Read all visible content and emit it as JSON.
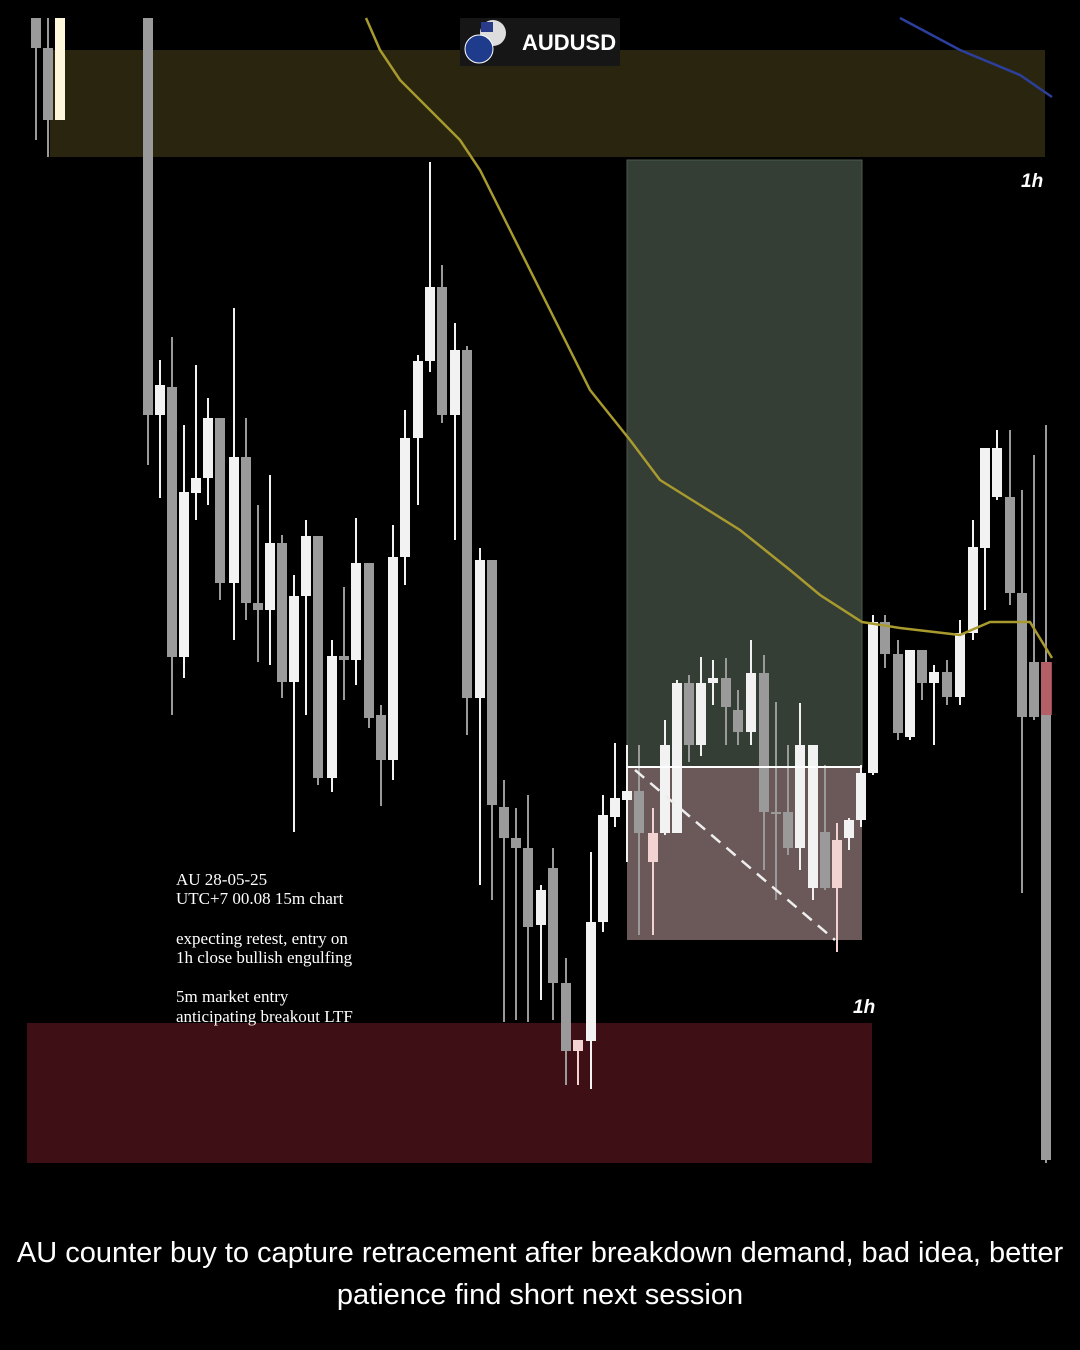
{
  "header": {
    "symbol": "AUDUSD"
  },
  "labels": {
    "zone_top": "1h",
    "zone_bottom": "1h"
  },
  "notes": [
    "AU 28-05-25",
    "UTC+7 00.08 15m chart",
    "expecting retest, entry on",
    "1h close bullish engulfing",
    "5m market entry",
    "anticipating breakout LTF"
  ],
  "caption": "AU counter buy to capture retracement after breakdown demand, bad idea, better patience find short next session"
}
